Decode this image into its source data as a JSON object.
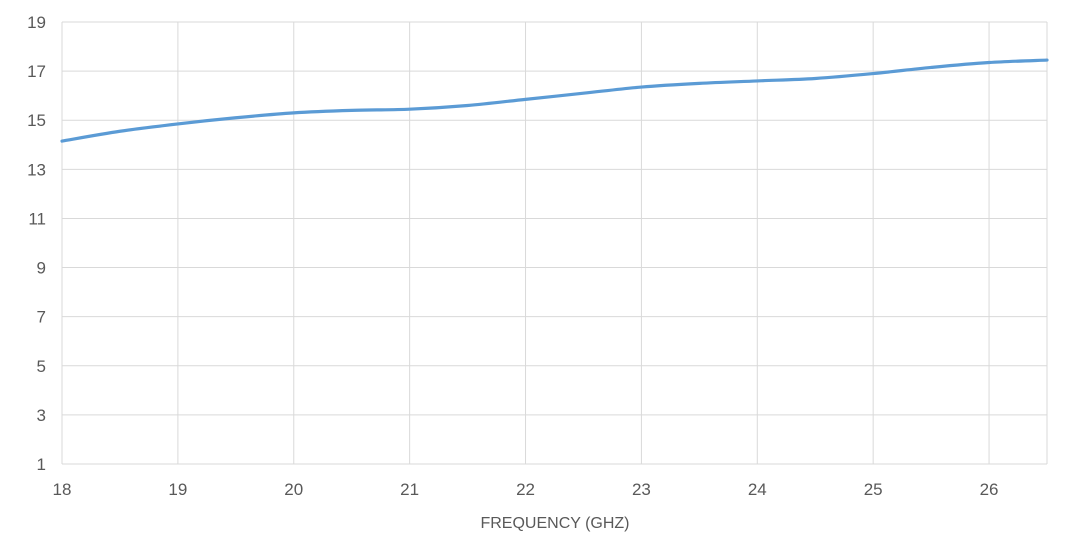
{
  "chart_data": {
    "type": "line",
    "title": "",
    "xlabel": "FREQUENCY (GHZ)",
    "ylabel": "",
    "xlim": [
      18,
      26.5
    ],
    "ylim": [
      1,
      19
    ],
    "x_ticks": [
      18,
      19,
      20,
      21,
      22,
      23,
      24,
      25,
      26
    ],
    "y_ticks": [
      1,
      3,
      5,
      7,
      9,
      11,
      13,
      15,
      17,
      19
    ],
    "grid": true,
    "legend": "none",
    "series": [
      {
        "color": "#5B9BD5",
        "x": [
          18,
          18.5,
          19,
          19.5,
          20,
          20.5,
          21,
          21.5,
          22,
          22.5,
          23,
          23.5,
          24,
          24.5,
          25,
          25.5,
          26,
          26.5
        ],
        "y": [
          14.15,
          14.55,
          14.85,
          15.1,
          15.3,
          15.4,
          15.45,
          15.6,
          15.85,
          16.1,
          16.35,
          16.5,
          16.6,
          16.7,
          16.9,
          17.15,
          17.35,
          17.45
        ]
      }
    ]
  },
  "colors": {
    "line": "#5B9BD5",
    "grid": "#D9D9D9",
    "text": "#595959",
    "background": "#FFFFFF"
  }
}
